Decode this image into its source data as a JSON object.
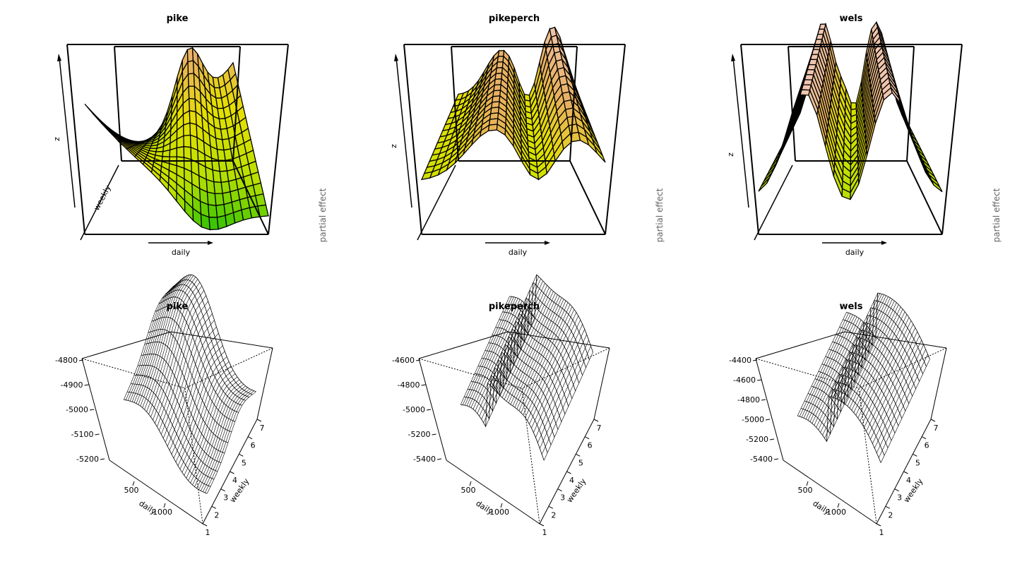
{
  "chart_data": [
    {
      "type": "surface-3d",
      "title": "pike",
      "xlabel": "daily",
      "ylabel": "weekly",
      "zlabel": "z",
      "side_label": "partial effect",
      "colors": [
        "#1fbf00",
        "#b8e000",
        "#e6e000",
        "#e8b060",
        "#f2c8b8"
      ]
    },
    {
      "type": "surface-3d",
      "title": "pikeperch",
      "xlabel": "daily",
      "ylabel": "weekly",
      "zlabel": "z",
      "side_label": "partial effect",
      "colors": [
        "#1fbf00",
        "#b8e000",
        "#e6e000",
        "#e8b060",
        "#f2c8b8"
      ]
    },
    {
      "type": "surface-3d",
      "title": "wels",
      "xlabel": "daily",
      "ylabel": "weekly",
      "zlabel": "z",
      "side_label": "partial effect",
      "colors": [
        "#1fbf00",
        "#b8e000",
        "#e6e000",
        "#e8b060",
        "#f2c8b8"
      ]
    },
    {
      "type": "wireframe-3d",
      "title": "pike",
      "xlabel": "daily",
      "ylabel": "weekly",
      "x_ticks": [
        "500",
        "1000"
      ],
      "y_ticks": [
        "1",
        "2",
        "3",
        "4",
        "5",
        "6",
        "7"
      ],
      "z_ticks": [
        "-5200",
        "-5100",
        "-5000",
        "-4900",
        "-4800"
      ],
      "zlim": [
        -5200,
        -4800
      ]
    },
    {
      "type": "wireframe-3d",
      "title": "pikeperch",
      "xlabel": "daily",
      "ylabel": "weekly",
      "x_ticks": [
        "500",
        "1000"
      ],
      "y_ticks": [
        "1",
        "2",
        "3",
        "4",
        "5",
        "6",
        "7"
      ],
      "z_ticks": [
        "-5400",
        "-5200",
        "-5000",
        "-4800",
        "-4600"
      ],
      "zlim": [
        -5400,
        -4600
      ]
    },
    {
      "type": "wireframe-3d",
      "title": "wels",
      "xlabel": "daily",
      "ylabel": "weekly",
      "x_ticks": [
        "500",
        "1000"
      ],
      "y_ticks": [
        "1",
        "2",
        "3",
        "4",
        "5",
        "6",
        "7"
      ],
      "z_ticks": [
        "-5400",
        "-5200",
        "-5000",
        "-4800",
        "-4600",
        "-4400"
      ],
      "zlim": [
        -5400,
        -4400
      ]
    }
  ]
}
